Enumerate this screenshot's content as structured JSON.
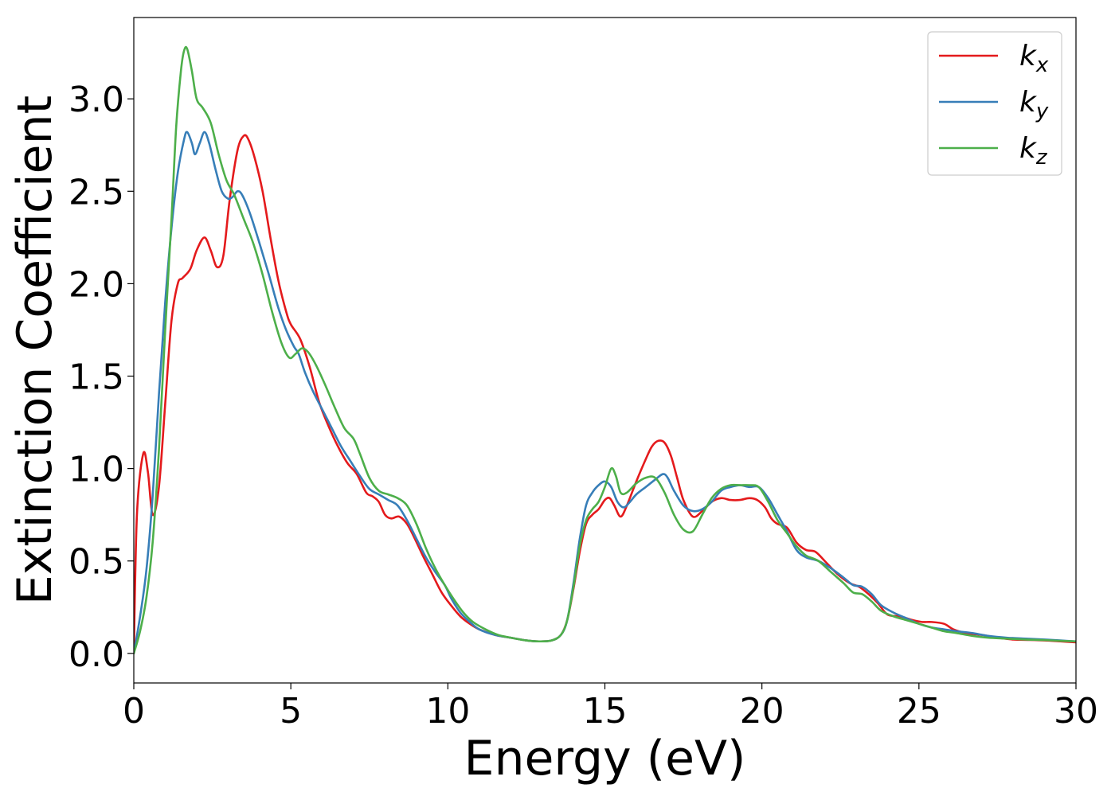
{
  "chart_data": {
    "type": "line",
    "title": "",
    "xlabel": "Energy (eV)",
    "ylabel": "Extinction Coefficient",
    "xlim": [
      0,
      30
    ],
    "ylim": [
      -0.16,
      3.44
    ],
    "xticks": [
      0,
      5,
      10,
      15,
      20,
      25,
      30
    ],
    "xtick_labels": [
      "0",
      "5",
      "10",
      "15",
      "20",
      "25",
      "30"
    ],
    "yticks": [
      0.0,
      0.5,
      1.0,
      1.5,
      2.0,
      2.5,
      3.0
    ],
    "ytick_labels": [
      "0.0",
      "0.5",
      "1.0",
      "1.5",
      "2.0",
      "2.5",
      "3.0"
    ],
    "grid": false,
    "legend_position": "top-right",
    "series": [
      {
        "name": "k",
        "subscript": "x",
        "color": "#e41a1c",
        "x": [
          0,
          0.1,
          0.3,
          0.45,
          0.6,
          0.8,
          1.0,
          1.2,
          1.4,
          1.55,
          1.8,
          2.0,
          2.25,
          2.45,
          2.65,
          2.85,
          3.05,
          3.3,
          3.5,
          3.65,
          3.85,
          4.1,
          4.35,
          4.6,
          4.85,
          5.0,
          5.3,
          5.6,
          5.9,
          6.2,
          6.5,
          6.8,
          7.1,
          7.4,
          7.6,
          7.8,
          8.0,
          8.2,
          8.45,
          8.7,
          8.95,
          9.2,
          9.5,
          9.8,
          10.1,
          10.4,
          10.7,
          11.0,
          11.5,
          12.0,
          12.5,
          12.9,
          13.3,
          13.6,
          13.8,
          14.0,
          14.2,
          14.4,
          14.6,
          14.8,
          15.0,
          15.15,
          15.3,
          15.5,
          15.7,
          16.0,
          16.3,
          16.5,
          16.7,
          16.9,
          17.1,
          17.3,
          17.5,
          17.8,
          18.1,
          18.4,
          18.7,
          19.0,
          19.3,
          19.6,
          19.85,
          20.1,
          20.3,
          20.5,
          20.8,
          21.1,
          21.4,
          21.7,
          22.0,
          22.4,
          22.8,
          23.1,
          23.4,
          23.7,
          24.0,
          24.4,
          24.8,
          25.1,
          25.4,
          25.8,
          26.1,
          26.5,
          27.0,
          27.5,
          28.0,
          28.5,
          29.0,
          29.5,
          30.0
        ],
        "y": [
          0.0,
          0.75,
          1.08,
          0.98,
          0.75,
          0.9,
          1.35,
          1.8,
          2.0,
          2.03,
          2.08,
          2.18,
          2.25,
          2.18,
          2.09,
          2.15,
          2.45,
          2.72,
          2.8,
          2.78,
          2.68,
          2.5,
          2.25,
          2.02,
          1.85,
          1.78,
          1.7,
          1.55,
          1.36,
          1.23,
          1.12,
          1.03,
          0.97,
          0.87,
          0.85,
          0.82,
          0.75,
          0.73,
          0.74,
          0.7,
          0.62,
          0.53,
          0.43,
          0.33,
          0.26,
          0.2,
          0.16,
          0.13,
          0.1,
          0.085,
          0.07,
          0.065,
          0.07,
          0.1,
          0.18,
          0.35,
          0.55,
          0.7,
          0.75,
          0.78,
          0.83,
          0.84,
          0.8,
          0.74,
          0.8,
          0.93,
          1.05,
          1.12,
          1.15,
          1.14,
          1.07,
          0.95,
          0.83,
          0.74,
          0.77,
          0.82,
          0.84,
          0.83,
          0.83,
          0.84,
          0.83,
          0.79,
          0.73,
          0.7,
          0.68,
          0.6,
          0.56,
          0.55,
          0.5,
          0.43,
          0.38,
          0.36,
          0.32,
          0.27,
          0.21,
          0.2,
          0.18,
          0.17,
          0.17,
          0.16,
          0.13,
          0.11,
          0.1,
          0.085,
          0.075,
          0.073,
          0.07,
          0.065,
          0.06
        ]
      },
      {
        "name": "k",
        "subscript": "y",
        "color": "#377eb8",
        "x": [
          0,
          0.2,
          0.4,
          0.6,
          0.8,
          1.0,
          1.2,
          1.4,
          1.6,
          1.7,
          1.85,
          1.95,
          2.1,
          2.25,
          2.4,
          2.6,
          2.8,
          3.0,
          3.15,
          3.3,
          3.45,
          3.7,
          4.0,
          4.3,
          4.6,
          4.85,
          5.1,
          5.25,
          5.45,
          5.7,
          6.0,
          6.3,
          6.6,
          6.9,
          7.2,
          7.5,
          7.8,
          8.1,
          8.4,
          8.7,
          9.0,
          9.3,
          9.6,
          9.9,
          10.1,
          10.4,
          10.7,
          11.0,
          11.5,
          12.0,
          12.5,
          12.9,
          13.3,
          13.6,
          13.8,
          14.0,
          14.2,
          14.4,
          14.6,
          14.8,
          15.0,
          15.2,
          15.4,
          15.6,
          15.8,
          16.0,
          16.3,
          16.6,
          16.85,
          17.0,
          17.2,
          17.5,
          17.8,
          18.1,
          18.4,
          18.7,
          19.0,
          19.3,
          19.6,
          19.9,
          20.2,
          20.5,
          20.8,
          21.1,
          21.4,
          21.8,
          22.2,
          22.6,
          22.9,
          23.2,
          23.5,
          23.8,
          24.2,
          24.6,
          25.0,
          25.4,
          25.8,
          26.2,
          26.7,
          27.2,
          27.8,
          28.4,
          29.0,
          29.5,
          30.0
        ],
        "y": [
          0.0,
          0.2,
          0.45,
          0.85,
          1.4,
          1.9,
          2.3,
          2.6,
          2.78,
          2.82,
          2.76,
          2.7,
          2.76,
          2.82,
          2.76,
          2.62,
          2.5,
          2.46,
          2.47,
          2.5,
          2.48,
          2.38,
          2.22,
          2.05,
          1.87,
          1.75,
          1.66,
          1.62,
          1.52,
          1.42,
          1.32,
          1.22,
          1.12,
          1.04,
          0.96,
          0.89,
          0.86,
          0.83,
          0.8,
          0.72,
          0.62,
          0.52,
          0.44,
          0.37,
          0.3,
          0.22,
          0.17,
          0.13,
          0.1,
          0.085,
          0.07,
          0.065,
          0.07,
          0.1,
          0.18,
          0.38,
          0.62,
          0.8,
          0.87,
          0.91,
          0.93,
          0.9,
          0.82,
          0.79,
          0.82,
          0.86,
          0.9,
          0.94,
          0.97,
          0.95,
          0.88,
          0.8,
          0.77,
          0.78,
          0.82,
          0.88,
          0.9,
          0.91,
          0.9,
          0.9,
          0.84,
          0.75,
          0.66,
          0.56,
          0.52,
          0.5,
          0.46,
          0.41,
          0.37,
          0.36,
          0.32,
          0.26,
          0.22,
          0.19,
          0.16,
          0.14,
          0.13,
          0.12,
          0.11,
          0.095,
          0.085,
          0.08,
          0.075,
          0.07,
          0.065
        ]
      },
      {
        "name": "k",
        "subscript": "z",
        "color": "#4daf4a",
        "x": [
          0,
          0.2,
          0.4,
          0.6,
          0.8,
          1.0,
          1.2,
          1.35,
          1.5,
          1.6,
          1.7,
          1.85,
          2.0,
          2.2,
          2.45,
          2.7,
          2.95,
          3.2,
          3.5,
          3.8,
          4.1,
          4.4,
          4.7,
          4.95,
          5.15,
          5.35,
          5.55,
          5.8,
          6.1,
          6.4,
          6.7,
          7.0,
          7.2,
          7.5,
          7.8,
          8.1,
          8.4,
          8.7,
          9.0,
          9.3,
          9.6,
          9.9,
          10.2,
          10.5,
          10.8,
          11.2,
          11.6,
          12.0,
          12.5,
          12.9,
          13.3,
          13.6,
          13.8,
          14.0,
          14.2,
          14.4,
          14.6,
          14.8,
          15.0,
          15.2,
          15.35,
          15.5,
          15.7,
          16.0,
          16.3,
          16.6,
          16.9,
          17.2,
          17.5,
          17.8,
          18.1,
          18.4,
          18.7,
          19.0,
          19.3,
          19.6,
          19.9,
          20.2,
          20.5,
          20.8,
          21.1,
          21.4,
          21.8,
          22.2,
          22.6,
          22.9,
          23.2,
          23.5,
          23.8,
          24.2,
          24.6,
          25.0,
          25.4,
          25.8,
          26.2,
          26.7,
          27.2,
          27.8,
          28.4,
          29.0,
          29.5,
          30.0
        ],
        "y": [
          0.0,
          0.12,
          0.3,
          0.6,
          1.1,
          1.75,
          2.35,
          2.85,
          3.15,
          3.26,
          3.27,
          3.15,
          3.0,
          2.95,
          2.87,
          2.7,
          2.56,
          2.48,
          2.35,
          2.22,
          2.05,
          1.85,
          1.68,
          1.6,
          1.62,
          1.65,
          1.63,
          1.56,
          1.45,
          1.33,
          1.22,
          1.16,
          1.08,
          0.95,
          0.88,
          0.86,
          0.84,
          0.8,
          0.7,
          0.57,
          0.46,
          0.37,
          0.29,
          0.22,
          0.17,
          0.13,
          0.1,
          0.085,
          0.07,
          0.065,
          0.07,
          0.1,
          0.18,
          0.36,
          0.58,
          0.72,
          0.78,
          0.82,
          0.9,
          1.0,
          0.96,
          0.87,
          0.87,
          0.92,
          0.95,
          0.95,
          0.87,
          0.75,
          0.67,
          0.66,
          0.75,
          0.84,
          0.89,
          0.91,
          0.91,
          0.91,
          0.9,
          0.82,
          0.72,
          0.65,
          0.58,
          0.53,
          0.5,
          0.44,
          0.38,
          0.33,
          0.32,
          0.28,
          0.23,
          0.2,
          0.18,
          0.16,
          0.14,
          0.12,
          0.11,
          0.095,
          0.085,
          0.08,
          0.075,
          0.072,
          0.068,
          0.065
        ]
      }
    ]
  }
}
